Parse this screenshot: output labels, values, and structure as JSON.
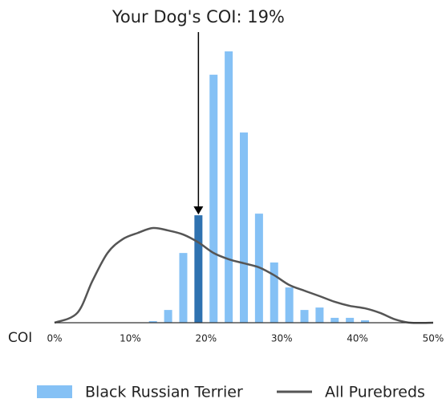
{
  "chart_data": {
    "type": "bar",
    "annotation": {
      "text": "Your Dog's COI: 19%",
      "x": 19
    },
    "xlabel": "COI",
    "xlim": [
      0,
      50
    ],
    "xticks": [
      {
        "value": 0,
        "label": "0%"
      },
      {
        "value": 10,
        "label": "10%"
      },
      {
        "value": 20,
        "label": "20%"
      },
      {
        "value": 30,
        "label": "30%"
      },
      {
        "value": 40,
        "label": "40%"
      },
      {
        "value": 50,
        "label": "50%"
      }
    ],
    "ylim": [
      0,
      100
    ],
    "legend": "bottom",
    "series": [
      {
        "name": "Black Russian Terrier",
        "type": "bar",
        "color": "#85c1f5",
        "x": [
          13,
          15,
          17,
          19,
          21,
          23,
          25,
          27,
          29,
          31,
          33,
          35,
          37,
          39,
          41
        ],
        "values": [
          0.6,
          4.7,
          25.7,
          39.6,
          91.4,
          100,
          70.1,
          40.2,
          22.2,
          13,
          4.7,
          5.6,
          1.8,
          1.8,
          0.9
        ],
        "colors": [
          "#85c1f5",
          "#85c1f5",
          "#85c1f5",
          "#2f72b0",
          "#85c1f5",
          "#85c1f5",
          "#85c1f5",
          "#85c1f5",
          "#85c1f5",
          "#85c1f5",
          "#85c1f5",
          "#85c1f5",
          "#85c1f5",
          "#85c1f5",
          "#85c1f5"
        ]
      },
      {
        "name": "All Purebreds",
        "type": "line",
        "color": "#555555",
        "x": [
          0,
          3,
          5,
          7,
          9,
          11,
          13,
          15,
          17,
          19,
          21,
          23,
          25,
          27,
          29,
          31,
          33,
          35,
          37,
          39,
          41,
          43,
          45,
          47,
          50
        ],
        "values": [
          0,
          3.6,
          15.4,
          25.7,
          30.8,
          33.1,
          34.9,
          34.0,
          32.5,
          29.6,
          25.7,
          23.4,
          21.9,
          20.4,
          17.5,
          13.9,
          11.8,
          9.8,
          7.7,
          6.2,
          5.3,
          3.6,
          1.2,
          0,
          0
        ]
      }
    ]
  }
}
